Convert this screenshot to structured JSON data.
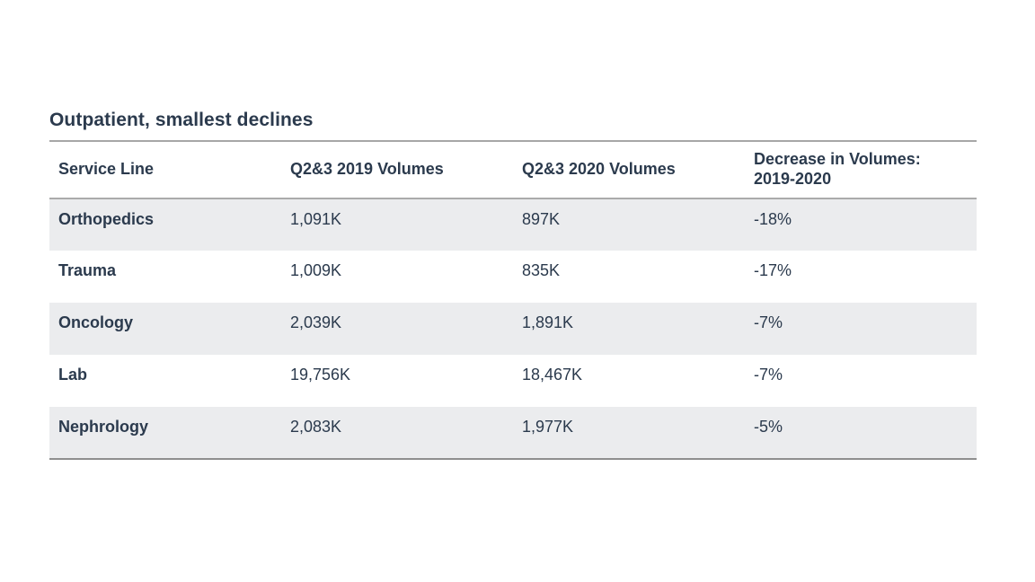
{
  "slide": {
    "title": "Outpatient, smallest declines"
  },
  "colors": {
    "text": "#2b3a4d",
    "stripe_bg": "#ebecee",
    "rule_top": "#a7a7a7",
    "rule_header_bottom": "#ababab",
    "rule_bottom": "#8f8f8f",
    "background": "#ffffff"
  },
  "table": {
    "columns": [
      {
        "label": "Service Line"
      },
      {
        "label": "Q2&3 2019 Volumes"
      },
      {
        "label": "Q2&3 2020 Volumes"
      },
      {
        "label": "Decrease in Volumes: 2019-2020"
      }
    ],
    "rows": [
      {
        "service_line": "Orthopedics",
        "v2019": "1,091K",
        "v2020": "897K",
        "decrease": "-18%"
      },
      {
        "service_line": "Trauma",
        "v2019": "1,009K",
        "v2020": "835K",
        "decrease": "-17%"
      },
      {
        "service_line": "Oncology",
        "v2019": "2,039K",
        "v2020": "1,891K",
        "decrease": "-7%"
      },
      {
        "service_line": "Lab",
        "v2019": "19,756K",
        "v2020": "18,467K",
        "decrease": "-7%"
      },
      {
        "service_line": "Nephrology",
        "v2019": "2,083K",
        "v2020": "1,977K",
        "decrease": "-5%"
      }
    ]
  },
  "chart_data": {
    "type": "table",
    "title": "Outpatient, smallest declines",
    "columns": [
      "Service Line",
      "Q2&3 2019 Volumes",
      "Q2&3 2020 Volumes",
      "Decrease in Volumes: 2019-2020"
    ],
    "rows": [
      [
        "Orthopedics",
        "1,091K",
        "897K",
        "-18%"
      ],
      [
        "Trauma",
        "1,009K",
        "835K",
        "-17%"
      ],
      [
        "Oncology",
        "2,039K",
        "1,891K",
        "-7%"
      ],
      [
        "Lab",
        "19,756K",
        "18,467K",
        "-7%"
      ],
      [
        "Nephrology",
        "2,083K",
        "1,977K",
        "-5%"
      ]
    ],
    "values_2019_thousands": [
      1091,
      1009,
      2039,
      19756,
      2083
    ],
    "values_2020_thousands": [
      897,
      835,
      1891,
      18467,
      1977
    ],
    "decrease_percent": [
      -18,
      -17,
      -7,
      -7,
      -5
    ]
  }
}
